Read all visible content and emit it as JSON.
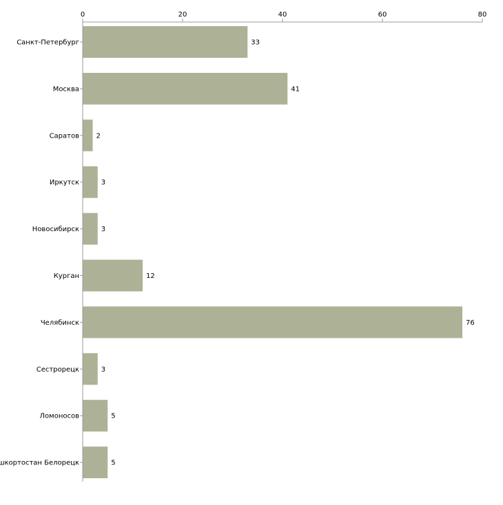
{
  "chart_data": {
    "type": "bar",
    "orientation": "horizontal",
    "title": "",
    "xlabel": "",
    "ylabel": "",
    "categories": [
      "Санкт-Петербург",
      "Москва",
      "Саратов",
      "Иркутск",
      "Новосибирск",
      "Курган",
      "Челябинск",
      "Сестрорецк",
      "Ломоносов",
      "Башкортостан Белорецк"
    ],
    "values": [
      33,
      41,
      2,
      3,
      3,
      12,
      76,
      3,
      5,
      5
    ],
    "xlim": [
      0,
      80
    ],
    "xticks": [
      0,
      20,
      40,
      60,
      80
    ],
    "grid": false,
    "legend": "none",
    "colors": {
      "bar": "#adb296",
      "axis": "#999999",
      "text": "#000000"
    }
  }
}
